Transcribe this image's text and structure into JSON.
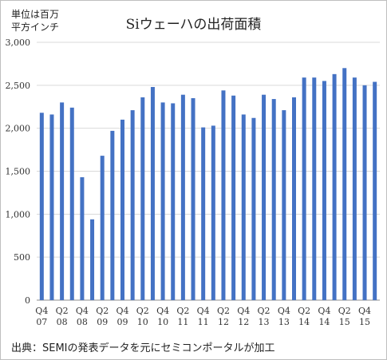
{
  "header": {
    "unit_line1": "単位は百万",
    "unit_line2": "平方インチ",
    "title": "Siウェーハの出荷面積"
  },
  "footer": {
    "source": "出典：SEMIの発表データを元にセミコンポータルが加工"
  },
  "colors": {
    "bar": "#4472C4",
    "grid": "#d9d9d9",
    "axis": "#8c8c8c"
  },
  "chart_data": {
    "type": "bar",
    "title": "Siウェーハの出荷面積",
    "ylabel": "単位は百万 平方インチ",
    "xlabel": "",
    "ylim": [
      0,
      3000
    ],
    "yticks": [
      "0",
      "500",
      "1,000",
      "1,500",
      "2,000",
      "2,500",
      "3,000"
    ],
    "grid": true,
    "x_tick_labels": [
      {
        "q": "Q4",
        "y": "07"
      },
      {
        "q": "Q2",
        "y": "08"
      },
      {
        "q": "Q4",
        "y": "08"
      },
      {
        "q": "Q2",
        "y": "09"
      },
      {
        "q": "Q4",
        "y": "09"
      },
      {
        "q": "Q2",
        "y": "10"
      },
      {
        "q": "Q4",
        "y": "10"
      },
      {
        "q": "Q2",
        "y": "11"
      },
      {
        "q": "Q4",
        "y": "11"
      },
      {
        "q": "Q2",
        "y": "12"
      },
      {
        "q": "Q4",
        "y": "12"
      },
      {
        "q": "Q2",
        "y": "13"
      },
      {
        "q": "Q4",
        "y": "13"
      },
      {
        "q": "Q2",
        "y": "14"
      },
      {
        "q": "Q4",
        "y": "14"
      },
      {
        "q": "Q2",
        "y": "15"
      },
      {
        "q": "Q4",
        "y": "15"
      }
    ],
    "categories": [
      "Q4 07",
      "Q1 08",
      "Q2 08",
      "Q3 08",
      "Q4 08",
      "Q1 09",
      "Q2 09",
      "Q3 09",
      "Q4 09",
      "Q1 10",
      "Q2 10",
      "Q3 10",
      "Q4 10",
      "Q1 11",
      "Q2 11",
      "Q3 11",
      "Q4 11",
      "Q1 12",
      "Q2 12",
      "Q3 12",
      "Q4 12",
      "Q1 13",
      "Q2 13",
      "Q3 13",
      "Q4 13",
      "Q1 14",
      "Q2 14",
      "Q3 14",
      "Q4 14",
      "Q1 15",
      "Q2 15",
      "Q3 15",
      "Q4 15",
      "Q1 16"
    ],
    "values": [
      2180,
      2160,
      2300,
      2240,
      1430,
      940,
      1680,
      1970,
      2100,
      2210,
      2360,
      2480,
      2300,
      2290,
      2390,
      2350,
      2010,
      2030,
      2440,
      2380,
      2160,
      2120,
      2390,
      2340,
      2210,
      2360,
      2590,
      2590,
      2550,
      2630,
      2700,
      2590,
      2500,
      2540
    ]
  }
}
